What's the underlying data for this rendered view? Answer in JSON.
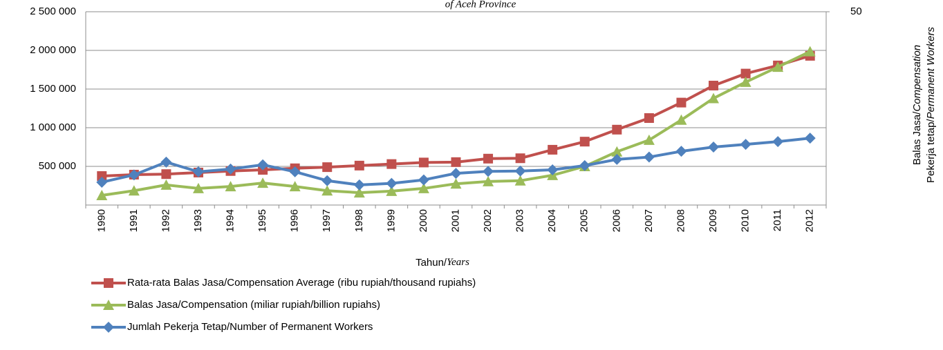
{
  "chart_data": {
    "type": "line",
    "title": "of Aceh Province",
    "x_label": {
      "normal": "Tahun/",
      "italic": "Years"
    },
    "y2_label": [
      {
        "normal": "Balas Jasa/",
        "italic": "Compensation"
      },
      {
        "normal": "Pekerja tetap/",
        "italic": "Permanent Workers"
      }
    ],
    "categories": [
      "1990",
      "1991",
      "1992",
      "1993",
      "1994",
      "1995",
      "1996",
      "1997",
      "1998",
      "1999",
      "2000",
      "2001",
      "2002",
      "2003",
      "2004",
      "2005",
      "2006",
      "2007",
      "2008",
      "2009",
      "2010",
      "2011",
      "2012"
    ],
    "series": [
      {
        "name": "Rata-rata Balas Jasa/Compensation Average (ribu rupiah/thousand rupiahs)",
        "color": "#c0504d",
        "marker": "square",
        "values": [
          375000,
          393000,
          400000,
          420000,
          440000,
          455000,
          475000,
          490000,
          510000,
          530000,
          550000,
          555000,
          600000,
          605000,
          715000,
          820000,
          975000,
          1125000,
          1325000,
          1545000,
          1700000,
          1805000,
          1930000
        ]
      },
      {
        "name": "Balas Jasa/Compensation (miliar rupiah/billion rupiahs)",
        "color": "#9bbb59",
        "marker": "triangle",
        "values": [
          125000,
          185000,
          260000,
          215000,
          240000,
          285000,
          240000,
          185000,
          160000,
          180000,
          215000,
          275000,
          305000,
          315000,
          385000,
          500000,
          690000,
          840000,
          1100000,
          1380000,
          1590000,
          1785000,
          1985000
        ]
      },
      {
        "name": "Jumlah Pekerja Tetap/Number of Permanent Workers",
        "color": "#4f81bd",
        "marker": "diamond",
        "values": [
          295000,
          390000,
          555000,
          430000,
          465000,
          520000,
          430000,
          315000,
          260000,
          280000,
          325000,
          410000,
          435000,
          440000,
          455000,
          510000,
          590000,
          620000,
          695000,
          750000,
          785000,
          820000,
          865000
        ]
      }
    ],
    "ylim": [
      0,
      2500000
    ],
    "yticks": [
      {
        "value": 500000,
        "label": "500 000"
      },
      {
        "value": 1000000,
        "label": "1 000 000"
      },
      {
        "value": 1500000,
        "label": "1 500 000"
      },
      {
        "value": 2000000,
        "label": "2 000 000"
      },
      {
        "value": 2500000,
        "label": "2 500 000"
      }
    ],
    "y2lim": [
      0,
      50
    ],
    "y2ticks": [
      50
    ],
    "grid": true
  }
}
